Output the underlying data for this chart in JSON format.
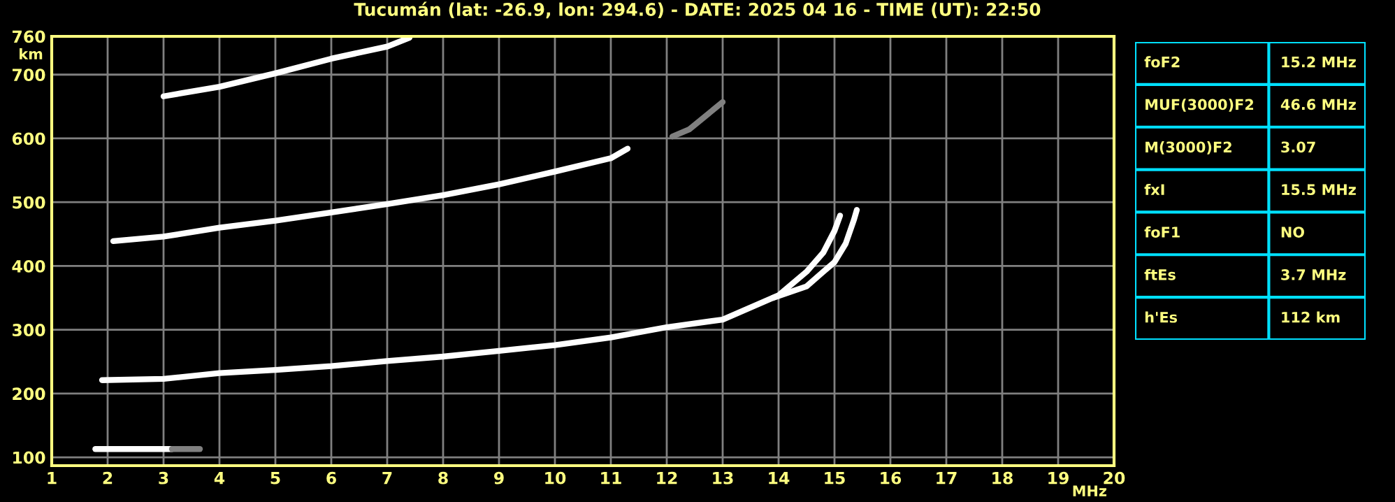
{
  "chart_data": {
    "type": "line",
    "title": "Tucumán (lat: -26.9, lon: 294.6) - DATE: 2025 04 16 - TIME (UT): 22:50",
    "xlabel": "MHz",
    "ylabel": "km",
    "xlim": [
      1,
      20
    ],
    "ylim": [
      87,
      760
    ],
    "xticks": [
      1,
      2,
      3,
      4,
      5,
      6,
      7,
      8,
      9,
      10,
      11,
      12,
      13,
      14,
      15,
      16,
      17,
      18,
      19,
      20
    ],
    "yticks": [
      100,
      200,
      300,
      400,
      500,
      600,
      700,
      760
    ],
    "grid": true,
    "legend": false,
    "marker": "none",
    "line_style": "solid",
    "series": [
      {
        "color": "#ffffff",
        "x": [
          1.78,
          2.5,
          3.15
        ],
        "values": [
          113,
          113,
          113
        ]
      },
      {
        "color": "#808080",
        "x": [
          3.15,
          3.65
        ],
        "values": [
          113,
          113
        ]
      },
      {
        "color": "#ffffff",
        "x": [
          1.9,
          3,
          4,
          5,
          6,
          7,
          8,
          9,
          10,
          11,
          12,
          13,
          14,
          14.5,
          14.8,
          15.0,
          15.1
        ],
        "values": [
          221,
          223,
          232,
          237,
          243,
          251,
          258,
          267,
          276,
          288,
          304,
          316,
          354,
          391,
          421,
          455,
          479
        ]
      },
      {
        "color": "#ffffff",
        "x": [
          13.9,
          14.5,
          14.8,
          15.0,
          15.2,
          15.35,
          15.4
        ],
        "values": [
          350,
          368,
          391,
          406,
          435,
          473,
          488
        ]
      },
      {
        "color": "#ffffff",
        "x": [
          2.1,
          3,
          4,
          5,
          6,
          7,
          8,
          9,
          10,
          11,
          11.3
        ],
        "values": [
          439,
          446,
          460,
          471,
          484,
          497,
          511,
          528,
          548,
          569,
          584
        ]
      },
      {
        "color": "#808080",
        "x": [
          12.1,
          12.4,
          13.0
        ],
        "values": [
          603,
          614,
          657
        ]
      },
      {
        "color": "#ffffff",
        "x": [
          3.0,
          4,
          5,
          6,
          7,
          7.4
        ],
        "values": [
          666,
          681,
          702,
          725,
          744,
          758
        ]
      }
    ],
    "annotations": [
      "foF2",
      "15.2 MHz",
      "MUF(3000)F2",
      "46.6 MHz",
      "M(3000)F2",
      "3.07",
      "fxI",
      "15.5 MHz",
      "foF1",
      "NO",
      "ftEs",
      "3.7 MHz",
      "h'Es",
      "112 km"
    ]
  }
}
